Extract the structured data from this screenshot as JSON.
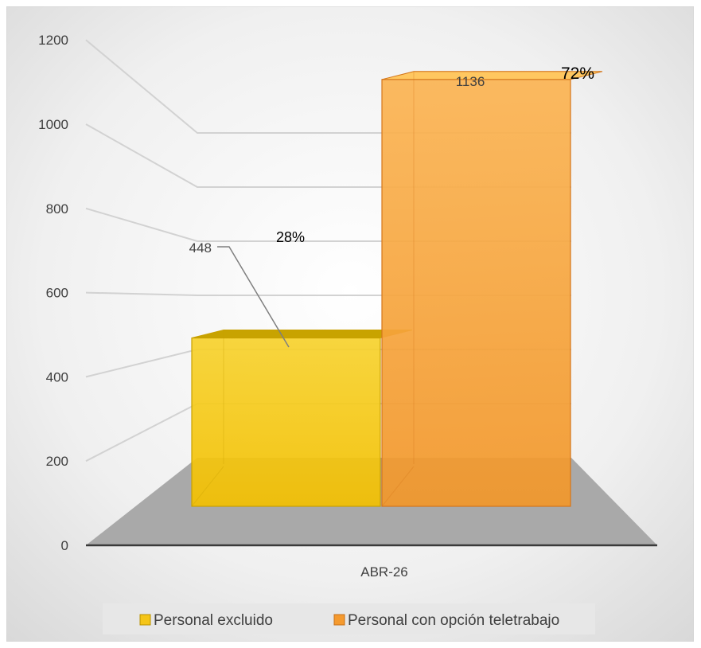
{
  "chart_data": {
    "type": "bar",
    "categories": [
      "ABR-26"
    ],
    "series": [
      {
        "name": "Personal excluido",
        "values": [
          448
        ],
        "data_label": "448",
        "percent_label": "28%",
        "color": "#F5C518"
      },
      {
        "name": "Personal con opción teletrabajo",
        "values": [
          1136
        ],
        "data_label": "1136",
        "percent_label": "72%",
        "color": "#F59A2E"
      }
    ],
    "y_ticks": [
      "0",
      "200",
      "400",
      "600",
      "800",
      "1000",
      "1200"
    ],
    "ylim": [
      0,
      1200
    ],
    "grid": true,
    "legend_position": "bottom",
    "style": "3d-column"
  }
}
